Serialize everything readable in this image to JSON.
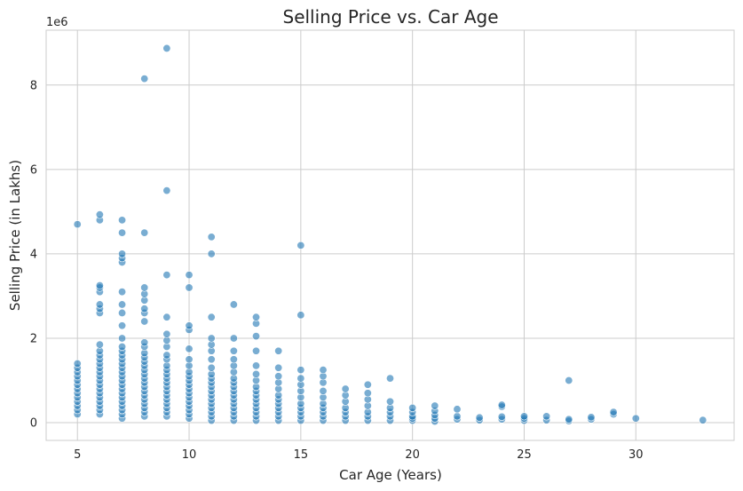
{
  "chart_data": {
    "type": "scatter",
    "title": "Selling Price vs. Car Age",
    "xlabel": "Car Age (Years)",
    "ylabel": "Selling Price (in Lakhs)",
    "y_offset_text": "1e6",
    "xlim": [
      3.6,
      34.4
    ],
    "ylim": [
      -420000,
      9300000
    ],
    "xticks": [
      5,
      10,
      15,
      20,
      25,
      30
    ],
    "yticks": [
      0,
      2000000,
      4000000,
      6000000,
      8000000
    ],
    "ytick_labels": [
      "0",
      "2",
      "4",
      "6",
      "8"
    ],
    "grid": true,
    "marker_color": "#1f77b4",
    "points": [
      [
        5,
        200000
      ],
      [
        5,
        300000
      ],
      [
        5,
        400000
      ],
      [
        5,
        500000
      ],
      [
        5,
        600000
      ],
      [
        5,
        700000
      ],
      [
        5,
        800000
      ],
      [
        5,
        900000
      ],
      [
        5,
        1000000
      ],
      [
        5,
        1100000
      ],
      [
        5,
        1200000
      ],
      [
        5,
        1300000
      ],
      [
        5,
        1400000
      ],
      [
        5,
        4700000
      ],
      [
        6,
        200000
      ],
      [
        6,
        300000
      ],
      [
        6,
        400000
      ],
      [
        6,
        500000
      ],
      [
        6,
        600000
      ],
      [
        6,
        700000
      ],
      [
        6,
        800000
      ],
      [
        6,
        900000
      ],
      [
        6,
        1000000
      ],
      [
        6,
        1100000
      ],
      [
        6,
        1200000
      ],
      [
        6,
        1300000
      ],
      [
        6,
        1400000
      ],
      [
        6,
        1500000
      ],
      [
        6,
        1600000
      ],
      [
        6,
        1700000
      ],
      [
        6,
        1850000
      ],
      [
        6,
        2600000
      ],
      [
        6,
        2700000
      ],
      [
        6,
        2800000
      ],
      [
        6,
        3100000
      ],
      [
        6,
        3200000
      ],
      [
        6,
        3250000
      ],
      [
        6,
        4800000
      ],
      [
        6,
        4930000
      ],
      [
        7,
        100000
      ],
      [
        7,
        200000
      ],
      [
        7,
        300000
      ],
      [
        7,
        400000
      ],
      [
        7,
        500000
      ],
      [
        7,
        600000
      ],
      [
        7,
        700000
      ],
      [
        7,
        800000
      ],
      [
        7,
        900000
      ],
      [
        7,
        1000000
      ],
      [
        7,
        1100000
      ],
      [
        7,
        1200000
      ],
      [
        7,
        1300000
      ],
      [
        7,
        1400000
      ],
      [
        7,
        1500000
      ],
      [
        7,
        1600000
      ],
      [
        7,
        1700000
      ],
      [
        7,
        1800000
      ],
      [
        7,
        2000000
      ],
      [
        7,
        2300000
      ],
      [
        7,
        2600000
      ],
      [
        7,
        2800000
      ],
      [
        7,
        3100000
      ],
      [
        7,
        3800000
      ],
      [
        7,
        3900000
      ],
      [
        7,
        4000000
      ],
      [
        7,
        4500000
      ],
      [
        7,
        4800000
      ],
      [
        8,
        150000
      ],
      [
        8,
        250000
      ],
      [
        8,
        350000
      ],
      [
        8,
        450000
      ],
      [
        8,
        550000
      ],
      [
        8,
        650000
      ],
      [
        8,
        750000
      ],
      [
        8,
        850000
      ],
      [
        8,
        950000
      ],
      [
        8,
        1050000
      ],
      [
        8,
        1150000
      ],
      [
        8,
        1250000
      ],
      [
        8,
        1350000
      ],
      [
        8,
        1450000
      ],
      [
        8,
        1550000
      ],
      [
        8,
        1650000
      ],
      [
        8,
        1800000
      ],
      [
        8,
        1900000
      ],
      [
        8,
        2400000
      ],
      [
        8,
        2600000
      ],
      [
        8,
        2700000
      ],
      [
        8,
        2900000
      ],
      [
        8,
        3050000
      ],
      [
        8,
        3200000
      ],
      [
        8,
        4500000
      ],
      [
        8,
        8150000
      ],
      [
        9,
        150000
      ],
      [
        9,
        250000
      ],
      [
        9,
        350000
      ],
      [
        9,
        450000
      ],
      [
        9,
        550000
      ],
      [
        9,
        650000
      ],
      [
        9,
        750000
      ],
      [
        9,
        850000
      ],
      [
        9,
        950000
      ],
      [
        9,
        1050000
      ],
      [
        9,
        1150000
      ],
      [
        9,
        1250000
      ],
      [
        9,
        1350000
      ],
      [
        9,
        1500000
      ],
      [
        9,
        1600000
      ],
      [
        9,
        1800000
      ],
      [
        9,
        1950000
      ],
      [
        9,
        2100000
      ],
      [
        9,
        2500000
      ],
      [
        9,
        3500000
      ],
      [
        9,
        5500000
      ],
      [
        9,
        8870000
      ],
      [
        10,
        100000
      ],
      [
        10,
        200000
      ],
      [
        10,
        300000
      ],
      [
        10,
        400000
      ],
      [
        10,
        500000
      ],
      [
        10,
        600000
      ],
      [
        10,
        700000
      ],
      [
        10,
        800000
      ],
      [
        10,
        900000
      ],
      [
        10,
        1000000
      ],
      [
        10,
        1100000
      ],
      [
        10,
        1200000
      ],
      [
        10,
        1350000
      ],
      [
        10,
        1500000
      ],
      [
        10,
        1750000
      ],
      [
        10,
        2200000
      ],
      [
        10,
        2300000
      ],
      [
        10,
        3200000
      ],
      [
        10,
        3500000
      ],
      [
        11,
        50000
      ],
      [
        11,
        150000
      ],
      [
        11,
        250000
      ],
      [
        11,
        350000
      ],
      [
        11,
        450000
      ],
      [
        11,
        550000
      ],
      [
        11,
        650000
      ],
      [
        11,
        750000
      ],
      [
        11,
        850000
      ],
      [
        11,
        950000
      ],
      [
        11,
        1050000
      ],
      [
        11,
        1150000
      ],
      [
        11,
        1300000
      ],
      [
        11,
        1500000
      ],
      [
        11,
        1700000
      ],
      [
        11,
        1850000
      ],
      [
        11,
        2000000
      ],
      [
        11,
        2500000
      ],
      [
        11,
        4000000
      ],
      [
        11,
        4400000
      ],
      [
        12,
        50000
      ],
      [
        12,
        150000
      ],
      [
        12,
        250000
      ],
      [
        12,
        350000
      ],
      [
        12,
        450000
      ],
      [
        12,
        550000
      ],
      [
        12,
        650000
      ],
      [
        12,
        750000
      ],
      [
        12,
        850000
      ],
      [
        12,
        950000
      ],
      [
        12,
        1050000
      ],
      [
        12,
        1200000
      ],
      [
        12,
        1350000
      ],
      [
        12,
        1500000
      ],
      [
        12,
        1700000
      ],
      [
        12,
        2000000
      ],
      [
        12,
        2800000
      ],
      [
        13,
        50000
      ],
      [
        13,
        150000
      ],
      [
        13,
        250000
      ],
      [
        13,
        350000
      ],
      [
        13,
        450000
      ],
      [
        13,
        550000
      ],
      [
        13,
        650000
      ],
      [
        13,
        750000
      ],
      [
        13,
        850000
      ],
      [
        13,
        1000000
      ],
      [
        13,
        1150000
      ],
      [
        13,
        1350000
      ],
      [
        13,
        1700000
      ],
      [
        13,
        2050000
      ],
      [
        13,
        2350000
      ],
      [
        13,
        2500000
      ],
      [
        14,
        50000
      ],
      [
        14,
        150000
      ],
      [
        14,
        250000
      ],
      [
        14,
        350000
      ],
      [
        14,
        450000
      ],
      [
        14,
        550000
      ],
      [
        14,
        650000
      ],
      [
        14,
        800000
      ],
      [
        14,
        950000
      ],
      [
        14,
        1100000
      ],
      [
        14,
        1300000
      ],
      [
        14,
        1700000
      ],
      [
        15,
        50000
      ],
      [
        15,
        150000
      ],
      [
        15,
        250000
      ],
      [
        15,
        350000
      ],
      [
        15,
        450000
      ],
      [
        15,
        600000
      ],
      [
        15,
        750000
      ],
      [
        15,
        900000
      ],
      [
        15,
        1050000
      ],
      [
        15,
        1250000
      ],
      [
        15,
        2550000
      ],
      [
        15,
        4200000
      ],
      [
        16,
        50000
      ],
      [
        16,
        150000
      ],
      [
        16,
        250000
      ],
      [
        16,
        350000
      ],
      [
        16,
        450000
      ],
      [
        16,
        600000
      ],
      [
        16,
        750000
      ],
      [
        16,
        950000
      ],
      [
        16,
        1100000
      ],
      [
        16,
        1250000
      ],
      [
        17,
        50000
      ],
      [
        17,
        150000
      ],
      [
        17,
        250000
      ],
      [
        17,
        350000
      ],
      [
        17,
        500000
      ],
      [
        17,
        650000
      ],
      [
        17,
        800000
      ],
      [
        18,
        50000
      ],
      [
        18,
        150000
      ],
      [
        18,
        250000
      ],
      [
        18,
        400000
      ],
      [
        18,
        550000
      ],
      [
        18,
        700000
      ],
      [
        18,
        900000
      ],
      [
        19,
        50000
      ],
      [
        19,
        150000
      ],
      [
        19,
        250000
      ],
      [
        19,
        350000
      ],
      [
        19,
        500000
      ],
      [
        19,
        1050000
      ],
      [
        20,
        50000
      ],
      [
        20,
        100000
      ],
      [
        20,
        150000
      ],
      [
        20,
        250000
      ],
      [
        20,
        350000
      ],
      [
        21,
        30000
      ],
      [
        21,
        100000
      ],
      [
        21,
        180000
      ],
      [
        21,
        280000
      ],
      [
        21,
        400000
      ],
      [
        22,
        80000
      ],
      [
        22,
        150000
      ],
      [
        22,
        320000
      ],
      [
        23,
        60000
      ],
      [
        23,
        120000
      ],
      [
        24,
        80000
      ],
      [
        24,
        140000
      ],
      [
        24,
        380000
      ],
      [
        24,
        420000
      ],
      [
        25,
        50000
      ],
      [
        25,
        100000
      ],
      [
        25,
        150000
      ],
      [
        26,
        60000
      ],
      [
        26,
        150000
      ],
      [
        27,
        40000
      ],
      [
        27,
        80000
      ],
      [
        27,
        1000000
      ],
      [
        28,
        80000
      ],
      [
        28,
        130000
      ],
      [
        29,
        200000
      ],
      [
        29,
        250000
      ],
      [
        30,
        100000
      ],
      [
        33,
        60000
      ]
    ]
  }
}
